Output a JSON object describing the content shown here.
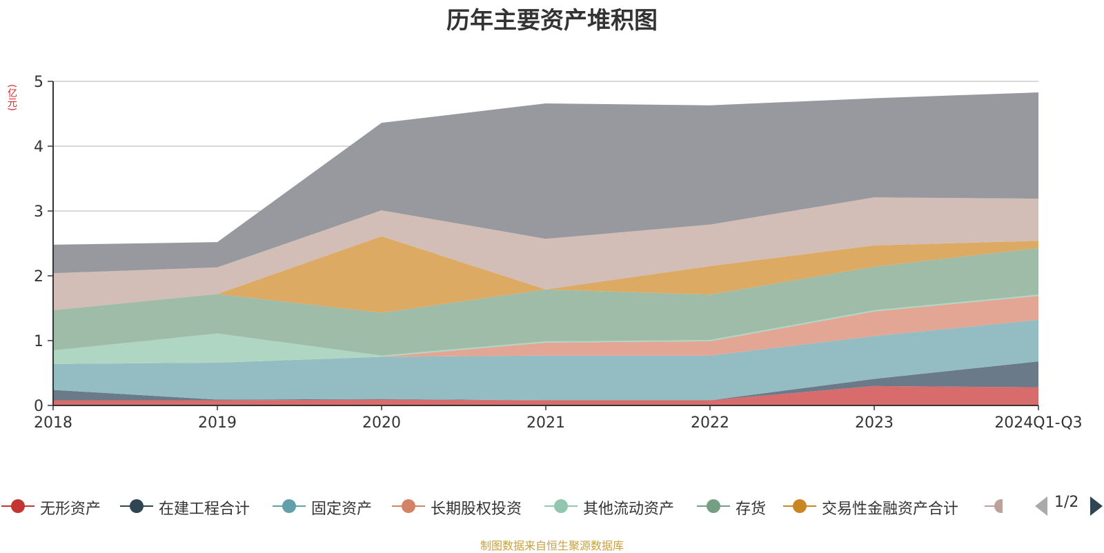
{
  "chart_data": {
    "type": "area",
    "title": "历年主要资产堆积图",
    "ylabel": "(亿元)",
    "xlabel": "",
    "stacked": true,
    "x": [
      "2018",
      "2019",
      "2020",
      "2021",
      "2022",
      "2023",
      "2024Q1-Q3"
    ],
    "ylim": [
      0,
      5
    ],
    "yticks": [
      "0",
      "1",
      "2",
      "3",
      "4",
      "5"
    ],
    "grid": true,
    "legend_position": "bottom",
    "series": [
      {
        "name": "无形资产",
        "color": "#d86c6c",
        "values": [
          0.08,
          0.08,
          0.09,
          0.08,
          0.08,
          0.3,
          0.28
        ]
      },
      {
        "name": "在建工程合计",
        "color": "#6b7a88",
        "values": [
          0.16,
          0.01,
          0.01,
          0.0,
          0.0,
          0.11,
          0.4
        ]
      },
      {
        "name": "固定资产",
        "color": "#93bcc3",
        "values": [
          0.4,
          0.57,
          0.65,
          0.69,
          0.69,
          0.66,
          0.64
        ]
      },
      {
        "name": "长期股权投资",
        "color": "#e3a594",
        "values": [
          0.0,
          0.0,
          0.0,
          0.2,
          0.22,
          0.38,
          0.37
        ]
      },
      {
        "name": "其他流动资产",
        "color": "#afd6c3",
        "values": [
          0.21,
          0.45,
          0.02,
          0.02,
          0.02,
          0.02,
          0.02
        ]
      },
      {
        "name": "存货",
        "color": "#9fbca8",
        "values": [
          0.62,
          0.61,
          0.66,
          0.8,
          0.7,
          0.67,
          0.72
        ]
      },
      {
        "name": "交易性金融资产合计",
        "color": "#dcaa62",
        "values": [
          0.0,
          0.0,
          1.18,
          0.0,
          0.44,
          0.33,
          0.11
        ]
      },
      {
        "name": "",
        "color": "#d3bdb7",
        "values": [
          0.57,
          0.41,
          0.4,
          0.78,
          0.64,
          0.74,
          0.65
        ]
      },
      {
        "name": "",
        "color": "#98999e",
        "values": [
          0.44,
          0.39,
          1.35,
          2.09,
          1.84,
          1.53,
          1.64
        ]
      }
    ]
  },
  "legend": {
    "items": [
      {
        "label": "无形资产",
        "color": "#c23531"
      },
      {
        "label": "在建工程合计",
        "color": "#2f4554"
      },
      {
        "label": "固定资产",
        "color": "#61a0a8"
      },
      {
        "label": "长期股权投资",
        "color": "#d48265"
      },
      {
        "label": "其他流动资产",
        "color": "#91c7ae"
      },
      {
        "label": "存货",
        "color": "#749f83"
      },
      {
        "label": "交易性金融资产合计",
        "color": "#ca8622"
      }
    ],
    "partial_color": "#bda29a",
    "page_indicator": "1/2"
  },
  "source_note": "制图数据来自恒生聚源数据库"
}
